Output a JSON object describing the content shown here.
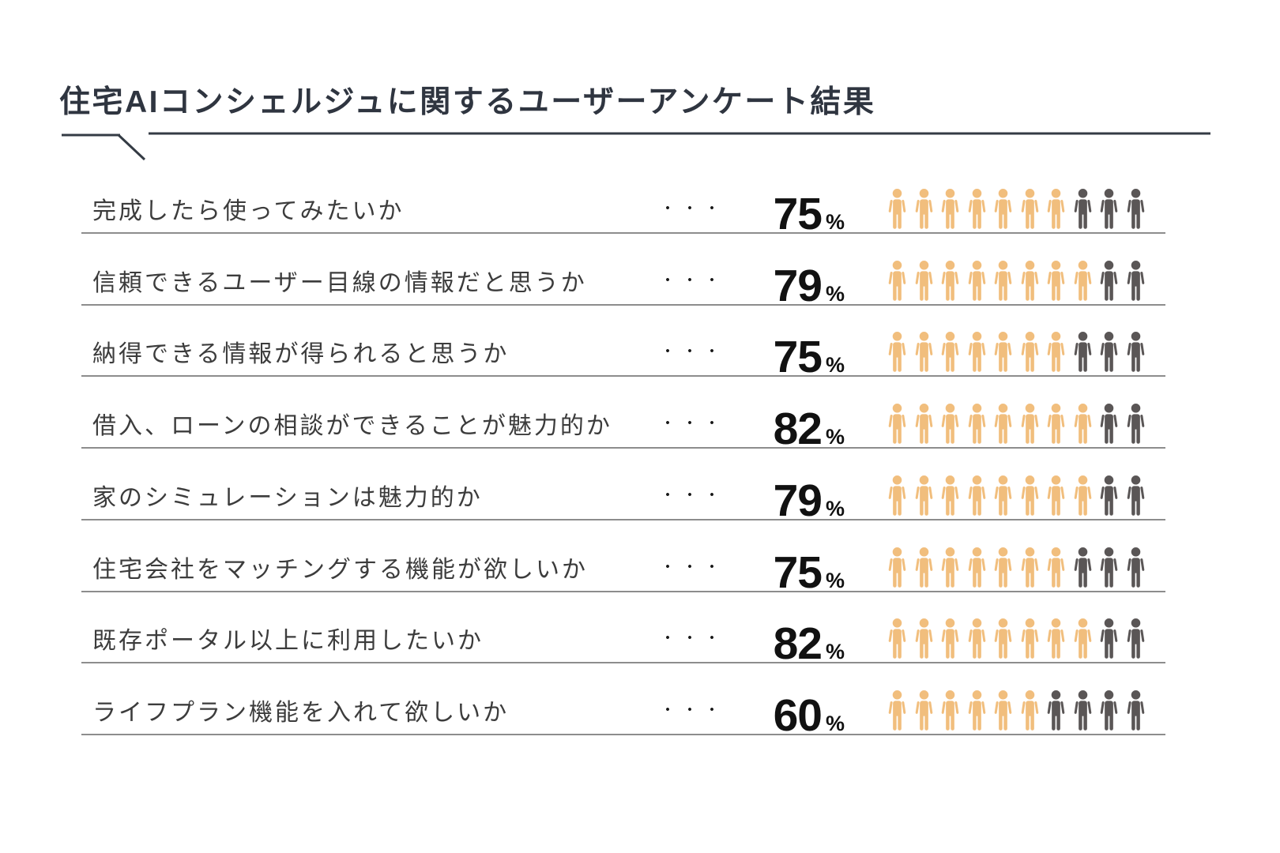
{
  "title": "住宅AIコンシェルジュに関するユーザーアンケート結果",
  "dots": "・・・",
  "percent_sign": "%",
  "icons_total": 10,
  "colors": {
    "icon_filled": "#f1be7d",
    "icon_unfilled": "#5a5656",
    "title_text": "#2f3540",
    "question_text": "#3c3c3c",
    "separator": "#8d8d8d",
    "underline": "#343b44",
    "percent_text": "#111111"
  },
  "rows": [
    {
      "question": "完成したら使ってみたいか",
      "percent": 75,
      "filled": 7
    },
    {
      "question": "信頼できるユーザー目線の情報だと思うか",
      "percent": 79,
      "filled": 8
    },
    {
      "question": "納得できる情報が得られると思うか",
      "percent": 75,
      "filled": 7
    },
    {
      "question": "借入、ローンの相談ができることが魅力的か",
      "percent": 82,
      "filled": 8
    },
    {
      "question": "家のシミュレーションは魅力的か",
      "percent": 79,
      "filled": 8
    },
    {
      "question": "住宅会社をマッチングする機能が欲しいか",
      "percent": 75,
      "filled": 7
    },
    {
      "question": "既存ポータル以上に利用したいか",
      "percent": 82,
      "filled": 8
    },
    {
      "question": "ライフプラン機能を入れて欲しいか",
      "percent": 60,
      "filled": 6
    }
  ],
  "chart_data": {
    "type": "pictogram-bar",
    "title": "住宅AIコンシェルジュに関するユーザーアンケート結果",
    "unit": "%",
    "icons_per_row": 10,
    "categories": [
      "完成したら使ってみたいか",
      "信頼できるユーザー目線の情報だと思うか",
      "納得できる情報が得られると思うか",
      "借入、ローンの相談ができることが魅力的か",
      "家のシミュレーションは魅力的か",
      "住宅会社をマッチングする機能が欲しいか",
      "既存ポータル以上に利用したいか",
      "ライフプラン機能を入れて欲しいか"
    ],
    "values": [
      75,
      79,
      75,
      82,
      79,
      75,
      82,
      60
    ],
    "filled_icons": [
      7,
      8,
      7,
      8,
      8,
      7,
      8,
      6
    ],
    "filled_color": "#f1be7d",
    "unfilled_color": "#5a5656",
    "legend": null,
    "grid": false
  }
}
